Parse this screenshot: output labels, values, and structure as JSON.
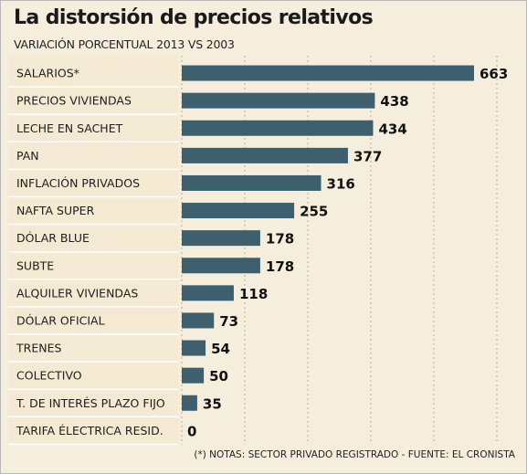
{
  "title": "La distorsión de precios relativos",
  "subtitle": "VARIACIÓN PORCENTUAL 2013 VS 2003",
  "footnote": "(*) NOTAS: SECTOR PRIVADO REGISTRADO - FUENTE: EL CRONISTA",
  "chart_data": {
    "type": "bar",
    "orientation": "horizontal",
    "categories": [
      "SALARIOS*",
      "PRECIOS VIVIENDAS",
      "LECHE EN SACHET",
      "PAN",
      "INFLACIÓN PRIVADOS",
      "NAFTA SUPER",
      "DÓLAR BLUE",
      "SUBTE",
      "ALQUILER VIVIENDAS",
      "DÓLAR OFICIAL",
      "TRENES",
      "COLECTIVO",
      "T. DE INTERÉS PLAZO FIJO",
      "TARIFA ÉLECTRICA RESID."
    ],
    "values": [
      663,
      438,
      434,
      377,
      316,
      255,
      178,
      178,
      118,
      73,
      54,
      50,
      35,
      0
    ],
    "data_labels": [
      "663",
      "438",
      "434",
      "377",
      "316",
      "255",
      "178",
      "178",
      "118",
      "73",
      "54",
      "50",
      "35",
      "0"
    ],
    "xlim": [
      0,
      663
    ],
    "bar_color": "#3e5f6e",
    "grid": "vertical dashed",
    "legend": "none"
  }
}
